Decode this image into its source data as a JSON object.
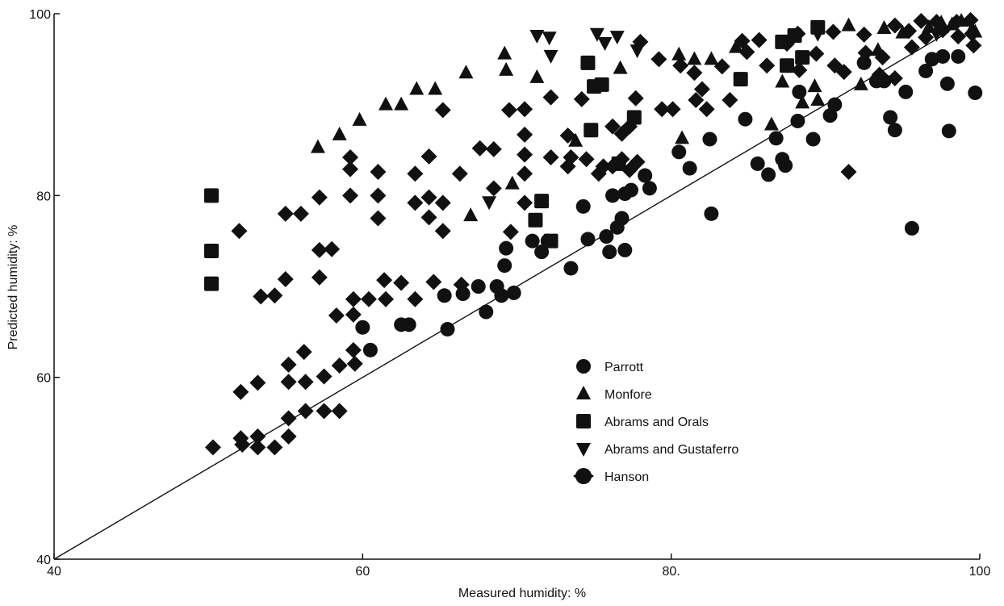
{
  "chart_data": {
    "type": "scatter",
    "title": "",
    "xlabel": "Measured humidity: %",
    "ylabel": "Predicted humidity: %",
    "xlim": [
      40,
      100
    ],
    "ylim": [
      40,
      100
    ],
    "x_ticks": [
      {
        "value": 40,
        "label": "40"
      },
      {
        "value": 60,
        "label": "60"
      },
      {
        "value": 80,
        "label": "80."
      },
      {
        "value": 100,
        "label": "100"
      }
    ],
    "y_ticks": [
      {
        "value": 40,
        "label": "40"
      },
      {
        "value": 60,
        "label": "60"
      },
      {
        "value": 80,
        "label": "80"
      },
      {
        "value": 100,
        "label": "100"
      }
    ],
    "grid": false,
    "legend_position": "lower-right",
    "reference_line": {
      "from": [
        40,
        40
      ],
      "to": [
        98,
        98
      ]
    },
    "series": [
      {
        "name": "Parrott",
        "marker": "circle",
        "points": [
          [
            60,
            65.5
          ],
          [
            60.5,
            63
          ],
          [
            62.5,
            65.8
          ],
          [
            63,
            65.8
          ],
          [
            65.3,
            69
          ],
          [
            65.5,
            65.3
          ],
          [
            66.5,
            69.2
          ],
          [
            67.5,
            70
          ],
          [
            68,
            67.2
          ],
          [
            68.7,
            70
          ],
          [
            69,
            69
          ],
          [
            69.2,
            72.3
          ],
          [
            69.3,
            74.2
          ],
          [
            69.8,
            69.3
          ],
          [
            71,
            75
          ],
          [
            71.6,
            73.8
          ],
          [
            72,
            75
          ],
          [
            73.5,
            72
          ],
          [
            74.3,
            78.8
          ],
          [
            74.6,
            75.2
          ],
          [
            75.8,
            75.5
          ],
          [
            76,
            73.8
          ],
          [
            76.2,
            80
          ],
          [
            76.5,
            76.5
          ],
          [
            76.8,
            77.5
          ],
          [
            77,
            74
          ],
          [
            77,
            80.2
          ],
          [
            77.4,
            80.6
          ],
          [
            78.3,
            82.2
          ],
          [
            78.6,
            80.8
          ],
          [
            80.5,
            84.8
          ],
          [
            81.2,
            83
          ],
          [
            82.5,
            86.2
          ],
          [
            82.6,
            78
          ],
          [
            84.8,
            88.4
          ],
          [
            85.6,
            83.5
          ],
          [
            86.3,
            82.3
          ],
          [
            86.8,
            86.3
          ],
          [
            87.2,
            84
          ],
          [
            87.4,
            83.3
          ],
          [
            88.2,
            88.2
          ],
          [
            88.3,
            91.4
          ],
          [
            89.2,
            86.2
          ],
          [
            90.3,
            88.8
          ],
          [
            90.6,
            90
          ],
          [
            92.5,
            94.6
          ],
          [
            93.3,
            92.6
          ],
          [
            93.8,
            92.6
          ],
          [
            94.2,
            88.6
          ],
          [
            94.5,
            87.2
          ],
          [
            95.2,
            91.4
          ],
          [
            95.6,
            76.4
          ],
          [
            96.5,
            93.7
          ],
          [
            96.9,
            95
          ],
          [
            97.6,
            95.3
          ],
          [
            97.9,
            92.3
          ],
          [
            98,
            87.1
          ],
          [
            98.6,
            95.3
          ],
          [
            99.7,
            91.3
          ]
        ]
      },
      {
        "name": "Monfore",
        "marker": "triangle-up",
        "points": [
          [
            57.1,
            85.3
          ],
          [
            58.5,
            86.7
          ],
          [
            59.8,
            88.3
          ],
          [
            61.5,
            90
          ],
          [
            62.5,
            90
          ],
          [
            63.5,
            91.7
          ],
          [
            64.7,
            91.7
          ],
          [
            66.7,
            93.5
          ],
          [
            67,
            77.8
          ],
          [
            69.2,
            95.6
          ],
          [
            69.3,
            93.8
          ],
          [
            69.7,
            81.3
          ],
          [
            71.3,
            93
          ],
          [
            73.8,
            86
          ],
          [
            76.7,
            94
          ],
          [
            80.5,
            95.5
          ],
          [
            80.7,
            86.3
          ],
          [
            81.5,
            95
          ],
          [
            82.6,
            95
          ],
          [
            84.2,
            96.3
          ],
          [
            86.5,
            87.8
          ],
          [
            87.2,
            92.5
          ],
          [
            88.5,
            90.2
          ],
          [
            89.3,
            92
          ],
          [
            89.5,
            90.5
          ],
          [
            91.5,
            98.7
          ],
          [
            92.3,
            92.2
          ],
          [
            93.4,
            96
          ],
          [
            93.8,
            98.4
          ],
          [
            95,
            97.9
          ],
          [
            96.7,
            98.5
          ],
          [
            97.5,
            99
          ],
          [
            98.2,
            98.8
          ],
          [
            98.8,
            99.2
          ],
          [
            99.5,
            98.3
          ],
          [
            99.7,
            98
          ]
        ]
      },
      {
        "name": "Abrams and Orals",
        "marker": "square",
        "points": [
          [
            50.2,
            80
          ],
          [
            50.2,
            73.9
          ],
          [
            50.2,
            70.3
          ],
          [
            71.2,
            77.3
          ],
          [
            71.6,
            79.4
          ],
          [
            72.2,
            75
          ],
          [
            74.6,
            94.6
          ],
          [
            74.8,
            87.2
          ],
          [
            75,
            92
          ],
          [
            75.5,
            92.2
          ],
          [
            76.6,
            83.5
          ],
          [
            77.6,
            88.6
          ],
          [
            84.5,
            92.8
          ],
          [
            87.2,
            96.9
          ],
          [
            87.5,
            94.3
          ],
          [
            88,
            97.6
          ],
          [
            88.5,
            95.2
          ],
          [
            89.5,
            98.5
          ]
        ]
      },
      {
        "name": "Abrams and Gustaferro",
        "marker": "triangle-down",
        "points": [
          [
            68.2,
            79.3
          ],
          [
            71.3,
            97.6
          ],
          [
            72.1,
            97.4
          ],
          [
            72.2,
            95.4
          ],
          [
            75.2,
            97.8
          ],
          [
            75.7,
            96.8
          ],
          [
            76.5,
            97.5
          ],
          [
            77.8,
            96
          ],
          [
            89.5,
            97.8
          ],
          [
            97.2,
            97.8
          ]
        ]
      },
      {
        "name": "Hanson",
        "marker": "diamond",
        "points": [
          [
            50.3,
            52.3
          ],
          [
            52,
            76.1
          ],
          [
            52.1,
            58.4
          ],
          [
            52.1,
            53.3
          ],
          [
            52.2,
            52.6
          ],
          [
            53.2,
            59.4
          ],
          [
            53.2,
            53.5
          ],
          [
            53.2,
            52.3
          ],
          [
            53.4,
            68.9
          ],
          [
            54.3,
            52.3
          ],
          [
            54.3,
            69
          ],
          [
            55,
            78
          ],
          [
            55,
            70.8
          ],
          [
            55.2,
            61.4
          ],
          [
            55.2,
            59.5
          ],
          [
            55.2,
            55.5
          ],
          [
            55.2,
            53.5
          ],
          [
            56,
            78
          ],
          [
            56.2,
            62.8
          ],
          [
            56.3,
            59.5
          ],
          [
            56.3,
            56.3
          ],
          [
            57.2,
            79.8
          ],
          [
            57.2,
            74
          ],
          [
            57.2,
            71
          ],
          [
            57.5,
            60.1
          ],
          [
            57.5,
            56.3
          ],
          [
            58,
            74.1
          ],
          [
            58.3,
            66.8
          ],
          [
            58.5,
            61.3
          ],
          [
            58.5,
            56.3
          ],
          [
            59.2,
            84.2
          ],
          [
            59.2,
            82.9
          ],
          [
            59.2,
            80
          ],
          [
            59.4,
            68.6
          ],
          [
            59.4,
            66.9
          ],
          [
            59.4,
            63
          ],
          [
            59.5,
            61.5
          ],
          [
            60.4,
            68.6
          ],
          [
            61,
            82.6
          ],
          [
            61,
            80
          ],
          [
            61,
            77.5
          ],
          [
            61.4,
            70.7
          ],
          [
            61.5,
            68.6
          ],
          [
            62.5,
            70.4
          ],
          [
            63.4,
            82.4
          ],
          [
            63.4,
            79.2
          ],
          [
            63.4,
            68.6
          ],
          [
            64.3,
            84.3
          ],
          [
            64.3,
            79.8
          ],
          [
            64.3,
            77.6
          ],
          [
            64.6,
            70.5
          ],
          [
            65.2,
            89.4
          ],
          [
            65.2,
            79.2
          ],
          [
            65.2,
            76.1
          ],
          [
            66.3,
            82.4
          ],
          [
            66.4,
            70.2
          ],
          [
            67.6,
            85.2
          ],
          [
            68.5,
            85.1
          ],
          [
            68.5,
            80.8
          ],
          [
            69.5,
            89.4
          ],
          [
            69.6,
            76
          ],
          [
            70.5,
            89.5
          ],
          [
            70.5,
            86.7
          ],
          [
            70.5,
            84.5
          ],
          [
            70.5,
            82.4
          ],
          [
            70.5,
            79.2
          ],
          [
            72.2,
            90.8
          ],
          [
            72.2,
            84.2
          ],
          [
            73.3,
            86.6
          ],
          [
            73.3,
            83.2
          ],
          [
            73.5,
            84.2
          ],
          [
            74.2,
            90.6
          ],
          [
            74.5,
            84
          ],
          [
            75.3,
            82.4
          ],
          [
            75.6,
            83.2
          ],
          [
            76.2,
            87.6
          ],
          [
            76.2,
            83.2
          ],
          [
            76.8,
            86.8
          ],
          [
            76.8,
            84
          ],
          [
            77.3,
            87.6
          ],
          [
            77.3,
            82.8
          ],
          [
            77.7,
            90.7
          ],
          [
            77.8,
            83.7
          ],
          [
            78,
            96.9
          ],
          [
            79.2,
            95
          ],
          [
            79.4,
            89.5
          ],
          [
            80.1,
            89.5
          ],
          [
            80.6,
            94.3
          ],
          [
            81.5,
            93.5
          ],
          [
            81.6,
            90.5
          ],
          [
            82,
            91.7
          ],
          [
            82.3,
            89.5
          ],
          [
            83.3,
            94.2
          ],
          [
            83.8,
            90.5
          ],
          [
            84.6,
            97
          ],
          [
            84.9,
            95.8
          ],
          [
            85.7,
            97.1
          ],
          [
            86.2,
            94.3
          ],
          [
            87.5,
            96.7
          ],
          [
            88.2,
            97.8
          ],
          [
            88.3,
            93.8
          ],
          [
            89.4,
            95.6
          ],
          [
            90.5,
            98
          ],
          [
            90.6,
            94.3
          ],
          [
            91.2,
            93.6
          ],
          [
            91.5,
            82.6
          ],
          [
            92.5,
            97.7
          ],
          [
            92.6,
            95.7
          ],
          [
            93.5,
            93.3
          ],
          [
            93.7,
            95.2
          ],
          [
            94.5,
            98.7
          ],
          [
            94.5,
            92.9
          ],
          [
            95.4,
            98.1
          ],
          [
            95.6,
            96.3
          ],
          [
            96.2,
            99.2
          ],
          [
            96.5,
            97.4
          ],
          [
            97.2,
            99.1
          ],
          [
            97.6,
            98.2
          ],
          [
            98.5,
            99.1
          ],
          [
            98.6,
            97.5
          ],
          [
            99.4,
            99.3
          ],
          [
            99.5,
            97.8
          ],
          [
            99.6,
            96.5
          ]
        ]
      }
    ]
  }
}
